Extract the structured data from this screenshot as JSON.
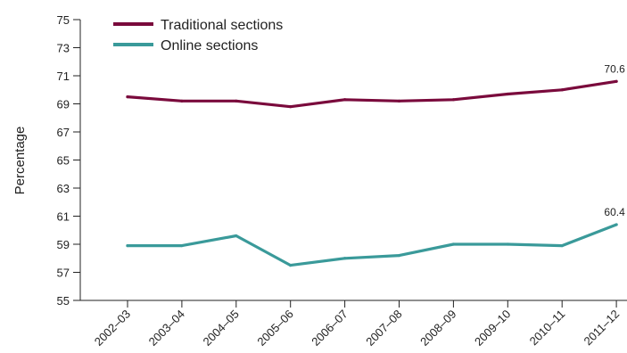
{
  "chart_data": {
    "type": "line",
    "title": "",
    "xlabel": "",
    "ylabel": "Percentage",
    "ylim": [
      55,
      75
    ],
    "yticks": [
      55,
      57,
      59,
      61,
      63,
      65,
      67,
      69,
      71,
      73,
      75
    ],
    "grid": false,
    "legend_position": "top-left",
    "categories": [
      "2002–03",
      "2003–04",
      "2004–05",
      "2005–06",
      "2006–07",
      "2007–08",
      "2008–09",
      "2009–10",
      "2010–11",
      "2011–12"
    ],
    "series": [
      {
        "name": "Traditional sections",
        "color": "#7a0a3c",
        "values": [
          69.5,
          69.2,
          69.2,
          68.8,
          69.3,
          69.2,
          69.3,
          69.7,
          70.0,
          70.6
        ],
        "end_label": "70.6"
      },
      {
        "name": "Online sections",
        "color": "#3a9a9a",
        "values": [
          58.9,
          58.9,
          59.6,
          57.5,
          58.0,
          58.2,
          59.0,
          59.0,
          58.9,
          60.4
        ],
        "end_label": "60.4"
      }
    ]
  }
}
